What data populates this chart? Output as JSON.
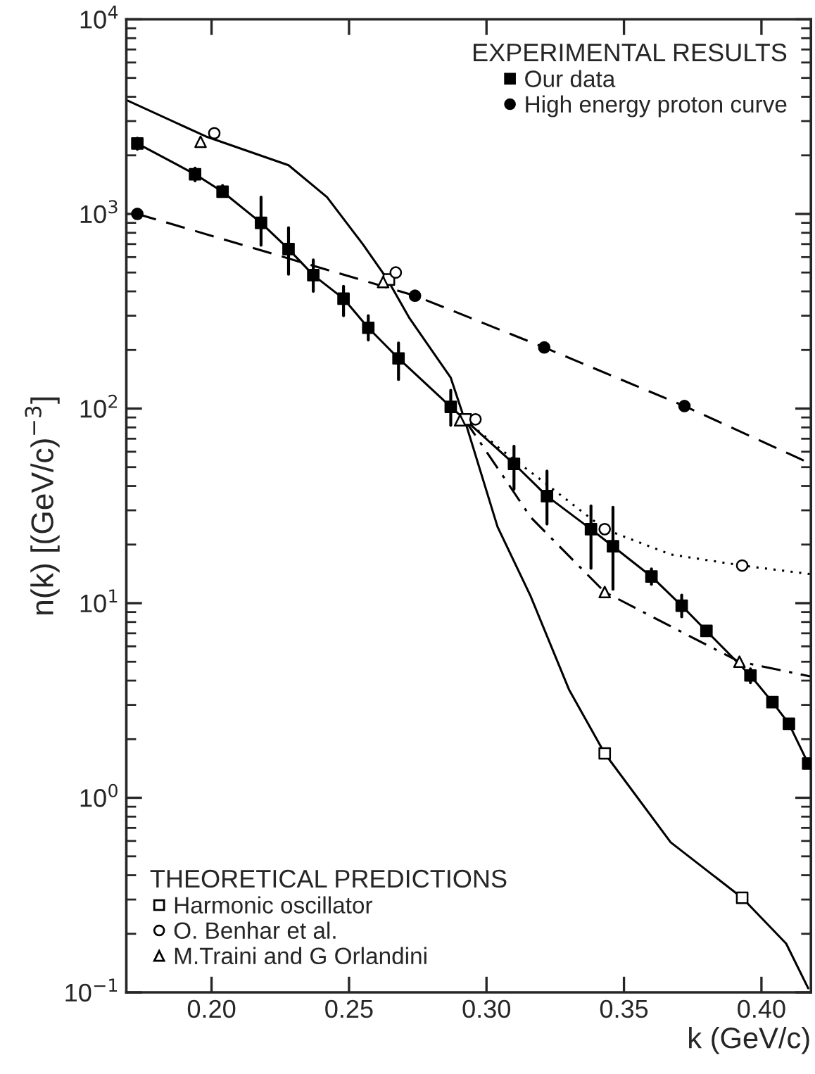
{
  "chart_data": {
    "type": "scatter",
    "xlabel": "k (GeV/c)",
    "ylabel": "n(k) [(GeV/c)$^{−3}$]",
    "legend_title": [
      "EXPERIMENTAL RESULTS",
      "THEORETICAL PREDICTIONS"
    ],
    "legend": [
      "top right",
      "bottom left"
    ],
    "log": "y",
    "grid": false,
    "xlim": [
      0.169,
      0.418
    ],
    "ylim": [
      0.1,
      10000
    ],
    "xticks": [
      {
        "value": 0.2,
        "label": "0.20"
      },
      {
        "value": 0.25,
        "label": "0.25"
      },
      {
        "value": 0.3,
        "label": "0.30"
      },
      {
        "value": 0.35,
        "label": "0.35"
      },
      {
        "value": 0.4,
        "label": "0.40"
      }
    ],
    "yticks": [
      {
        "value": 0.1,
        "label": "10$^{−1}$"
      },
      {
        "value": 1,
        "label": "10$^{0}$"
      },
      {
        "value": 10,
        "label": "10$^{1}$"
      },
      {
        "value": 100,
        "label": "10$^{2}$"
      },
      {
        "value": 1000,
        "label": "10$^{3}$"
      },
      {
        "value": 10000,
        "label": "10$^{4}$"
      }
    ],
    "series": [
      {
        "name": "Our data",
        "marker": "square",
        "color": "#000000",
        "x": [
          0.173,
          0.194,
          0.204,
          0.218,
          0.228,
          0.237,
          0.248,
          0.257,
          0.268,
          0.287,
          0.31,
          0.322,
          0.338,
          0.346,
          0.36,
          0.371,
          0.38,
          0.396,
          0.404,
          0.41,
          0.417
        ],
        "values": [
          2300,
          1600,
          1300,
          900,
          660,
          485,
          367,
          260,
          181,
          102,
          52,
          35.5,
          24,
          19.6,
          13.7,
          9.7,
          7.2,
          4.25,
          3.1,
          2.4,
          1.5
        ],
        "errors": [
          [
            2150,
            2450
          ],
          [
            1480,
            1720
          ],
          [
            1240,
            1400
          ],
          [
            690,
            1220
          ],
          [
            490,
            850
          ],
          [
            400,
            580
          ],
          [
            300,
            425
          ],
          [
            225,
            300
          ],
          [
            141,
            217
          ],
          [
            82,
            124
          ],
          [
            38.5,
            64
          ],
          [
            25.5,
            47.7
          ],
          [
            15.1,
            31.6
          ],
          [
            11.8,
            31.1
          ],
          [
            12.5,
            15
          ],
          [
            8.5,
            11
          ],
          null,
          [
            3.9,
            4.6
          ],
          null,
          null,
          null
        ]
      },
      {
        "type": "line",
        "line_style": "solid",
        "color": "#000000",
        "x": [
          0.173,
          0.194,
          0.204,
          0.218,
          0.228,
          0.237,
          0.248,
          0.257,
          0.268,
          0.287,
          0.31,
          0.322,
          0.338,
          0.346,
          0.36,
          0.371,
          0.38,
          0.396,
          0.404,
          0.41,
          0.417
        ],
        "values": [
          2300,
          1600,
          1300,
          900,
          660,
          485,
          367,
          260,
          181,
          102,
          52,
          35.5,
          24,
          19.6,
          13.7,
          9.7,
          7.2,
          4.25,
          3.1,
          2.4,
          1.5
        ]
      },
      {
        "name": "High energy proton curve",
        "marker": "circle",
        "color": "#000000",
        "x": [
          0.173,
          0.274,
          0.321,
          0.372
        ],
        "values": [
          1000,
          380,
          206,
          103
        ]
      },
      {
        "type": "line",
        "line_style": "dashed",
        "color": "#000000",
        "x": [
          0.173,
          0.274,
          0.321,
          0.372,
          0.418
        ],
        "values": [
          1000,
          380,
          206,
          103,
          52
        ]
      },
      {
        "type": "line",
        "line_style": "solid",
        "color": "#000000",
        "x": [
          0.169,
          0.198,
          0.228,
          0.242,
          0.255,
          0.264,
          0.272,
          0.287,
          0.292,
          0.304,
          0.316,
          0.33,
          0.343,
          0.367,
          0.393,
          0.409,
          0.417
        ],
        "values": [
          3850,
          2500,
          1780,
          1220,
          700,
          460,
          291,
          144,
          88,
          24.7,
          10.9,
          3.6,
          1.69,
          0.59,
          0.306,
          0.178,
          0.105
        ]
      },
      {
        "type": "line",
        "line_style": "dotted",
        "color": "#000000",
        "x": [
          0.292,
          0.305,
          0.318,
          0.343,
          0.367,
          0.393,
          0.418
        ],
        "values": [
          88,
          62,
          45,
          24,
          17.8,
          15.6,
          14.1
        ]
      },
      {
        "type": "line",
        "line_style": "dashdot",
        "color": "#000000",
        "x": [
          0.292,
          0.306,
          0.316,
          0.321,
          0.343,
          0.367,
          0.392,
          0.418
        ],
        "values": [
          88,
          45,
          27.7,
          23.5,
          11.4,
          7.6,
          5.0,
          4.2
        ]
      },
      {
        "name": "Harmonic oscillator",
        "marker": "square",
        "color": "#ffffff",
        "x": [
          0.2645,
          0.2924,
          0.343,
          0.393
        ],
        "values": [
          460,
          88,
          1.69,
          0.306
        ]
      },
      {
        "name": "O. Benhar et al.",
        "marker": "circle",
        "color": "#ffffff",
        "x": [
          0.201,
          0.267,
          0.296,
          0.343,
          0.393
        ],
        "values": [
          2600,
          500,
          88,
          24,
          15.6
        ]
      },
      {
        "name": "M.Traini and G Orlandini",
        "marker": "triangle",
        "color": "#ffffff",
        "x": [
          0.196,
          0.2624,
          0.2904,
          0.343,
          0.392
        ],
        "values": [
          2350,
          447,
          87,
          11.4,
          5.0
        ]
      }
    ]
  }
}
